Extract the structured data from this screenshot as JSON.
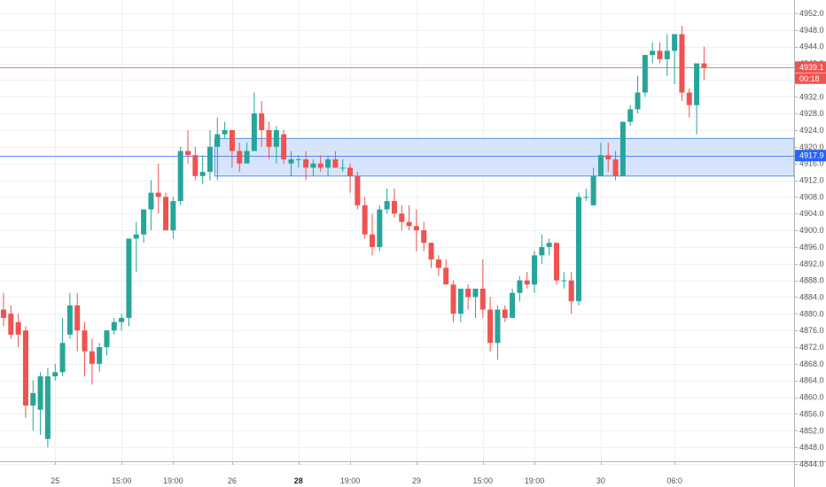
{
  "chart_data": {
    "type": "candlestick",
    "y_ticks": [
      4952.0,
      4948.0,
      4944.0,
      4940.0,
      4936.0,
      4932.0,
      4928.0,
      4924.0,
      4920.0,
      4916.0,
      4912.0,
      4908.0,
      4904.0,
      4900.0,
      4896.0,
      4892.0,
      4888.0,
      4884.0,
      4880.0,
      4876.0,
      4872.0,
      4868.0,
      4864.0,
      4860.0,
      4856.0,
      4852.0,
      4848.0,
      4844.0
    ],
    "ylim": [
      4842.5,
      4955.0
    ],
    "x_ticks": [
      {
        "label": "25",
        "bar": 7,
        "bold": false
      },
      {
        "label": "15:00",
        "bar": 16,
        "bold": false
      },
      {
        "label": "19:00",
        "bar": 23,
        "bold": false
      },
      {
        "label": "26",
        "bar": 31,
        "bold": false
      },
      {
        "label": "28",
        "bar": 40,
        "bold": true
      },
      {
        "label": "19:00",
        "bar": 47,
        "bold": false
      },
      {
        "label": "29",
        "bar": 56,
        "bold": false
      },
      {
        "label": "15:00",
        "bar": 65,
        "bold": false
      },
      {
        "label": "19:00",
        "bar": 72,
        "bold": false
      },
      {
        "label": "30",
        "bar": 81,
        "bold": false
      },
      {
        "label": "06:0",
        "bar": 91,
        "bold": false
      }
    ],
    "candles": [
      [
        4881,
        4885,
        4877,
        4879
      ],
      [
        4880,
        4882,
        4874,
        4875
      ],
      [
        4878,
        4880,
        4872,
        4875
      ],
      [
        4876,
        4877,
        4855,
        4858
      ],
      [
        4858,
        4864,
        4852,
        4861
      ],
      [
        4857,
        4866,
        4851,
        4865
      ],
      [
        4850,
        4867,
        4848,
        4865
      ],
      [
        4865,
        4868,
        4864,
        4866
      ],
      [
        4866,
        4879,
        4865,
        4873
      ],
      [
        4875,
        4885,
        4874,
        4882
      ],
      [
        4882,
        4885,
        4871,
        4876
      ],
      [
        4876,
        4878,
        4865,
        4871
      ],
      [
        4871,
        4874,
        4863,
        4868
      ],
      [
        4868,
        4873,
        4866,
        4872
      ],
      [
        4872,
        4876,
        4870,
        4876
      ],
      [
        4876,
        4879,
        4875,
        4878
      ],
      [
        4878,
        4880,
        4876,
        4879
      ],
      [
        4879,
        4898,
        4877,
        4898
      ],
      [
        4898,
        4902,
        4890,
        4899
      ],
      [
        4899,
        4905,
        4897,
        4905
      ],
      [
        4905,
        4912,
        4900,
        4909
      ],
      [
        4909,
        4916,
        4904,
        4908
      ],
      [
        4908,
        4909,
        4900,
        4900
      ],
      [
        4900,
        4908,
        4898,
        4907
      ],
      [
        4907,
        4920,
        4906,
        4919
      ],
      [
        4919,
        4924,
        4916,
        4918
      ],
      [
        4918,
        4920,
        4912,
        4913
      ],
      [
        4913,
        4918,
        4911,
        4914
      ],
      [
        4914,
        4924,
        4912,
        4920
      ],
      [
        4920,
        4927,
        4912,
        4923
      ],
      [
        4923,
        4926,
        4922,
        4924
      ],
      [
        4924,
        4924,
        4915,
        4919
      ],
      [
        4919,
        4921,
        4914,
        4916
      ],
      [
        4916,
        4921,
        4916,
        4919
      ],
      [
        4919,
        4933,
        4919,
        4928
      ],
      [
        4928,
        4931,
        4920,
        4924
      ],
      [
        4924,
        4926,
        4917,
        4920
      ],
      [
        4920,
        4925,
        4916,
        4924
      ],
      [
        4923,
        4924,
        4916,
        4917
      ],
      [
        4916,
        4919,
        4913,
        4917
      ],
      [
        4917,
        4918,
        4915,
        4917
      ],
      [
        4917,
        4919,
        4912,
        4915
      ],
      [
        4915,
        4917,
        4913,
        4916
      ],
      [
        4916,
        4918,
        4914,
        4915
      ],
      [
        4915,
        4918,
        4913,
        4917
      ],
      [
        4917,
        4919,
        4915,
        4915
      ],
      [
        4915,
        4917,
        4914,
        4915
      ],
      [
        4915,
        4916,
        4909,
        4913
      ],
      [
        4913,
        4914,
        4905,
        4906
      ],
      [
        4906,
        4908,
        4898,
        4899
      ],
      [
        4899,
        4904,
        4894,
        4896
      ],
      [
        4896,
        4906,
        4895,
        4905
      ],
      [
        4905,
        4910,
        4904,
        4907
      ],
      [
        4907,
        4910,
        4903,
        4904
      ],
      [
        4904,
        4906,
        4900,
        4902
      ],
      [
        4902,
        4906,
        4900,
        4901
      ],
      [
        4901,
        4905,
        4895,
        4900
      ],
      [
        4900,
        4902,
        4895,
        4897
      ],
      [
        4897,
        4897,
        4891,
        4893
      ],
      [
        4893,
        4894,
        4889,
        4891
      ],
      [
        4891,
        4893,
        4887,
        4887
      ],
      [
        4887,
        4888,
        4878,
        4880
      ],
      [
        4880,
        4886,
        4878,
        4886
      ],
      [
        4886,
        4887,
        4881,
        4884
      ],
      [
        4884,
        4886,
        4879,
        4886
      ],
      [
        4886,
        4893,
        4879,
        4881
      ],
      [
        4881,
        4884,
        4871,
        4873
      ],
      [
        4873,
        4882,
        4869,
        4881
      ],
      [
        4881,
        4882,
        4878,
        4879
      ],
      [
        4879,
        4886,
        4879,
        4885
      ],
      [
        4885,
        4889,
        4883,
        4888
      ],
      [
        4888,
        4890,
        4886,
        4887
      ],
      [
        4887,
        4895,
        4885,
        4894
      ],
      [
        4894,
        4899,
        4892,
        4896
      ],
      [
        4896,
        4898,
        4894,
        4897
      ],
      [
        4897,
        4897,
        4887,
        4888
      ],
      [
        4888,
        4890,
        4886,
        4888
      ],
      [
        4888,
        4890,
        4880,
        4883
      ],
      [
        4883,
        4909,
        4882,
        4908
      ],
      [
        4908,
        4910,
        4907,
        4908
      ],
      [
        4906,
        4915,
        4906,
        4913
      ],
      [
        4913,
        4921,
        4913,
        4918
      ],
      [
        4918,
        4921,
        4914,
        4917
      ],
      [
        4917,
        4919,
        4912,
        4913
      ],
      [
        4913,
        4926,
        4913,
        4926
      ],
      [
        4926,
        4930,
        4925,
        4929
      ],
      [
        4929,
        4937,
        4928,
        4933
      ],
      [
        4933,
        4942,
        4932,
        4942
      ],
      [
        4942,
        4945,
        4940,
        4943
      ],
      [
        4943,
        4945,
        4940,
        4941
      ],
      [
        4941,
        4947,
        4937,
        4943
      ],
      [
        4943,
        4947,
        4935,
        4947
      ],
      [
        4947,
        4949,
        4931,
        4933
      ],
      [
        4933,
        4934,
        4927,
        4930
      ],
      [
        4930,
        4940,
        4923,
        4940
      ],
      [
        4940,
        4944,
        4936,
        4939
      ]
    ],
    "zone": {
      "low": 4913,
      "high": 4922
    },
    "h_lines": [
      {
        "value": 4939.1,
        "label": "4939.1",
        "sublabel": "00:18",
        "color": "#ef5350"
      },
      {
        "value": 4917.9,
        "label": "4917.9",
        "color": "#2962ff"
      }
    ],
    "zone_start_bar": 29,
    "colors": {
      "up": "#26a69a",
      "down": "#ef5350",
      "zone_fill": "#cfe0fb",
      "zone_border": "#5b8de6",
      "grid": "#eef0f3",
      "axis": "#b2b5be"
    }
  }
}
